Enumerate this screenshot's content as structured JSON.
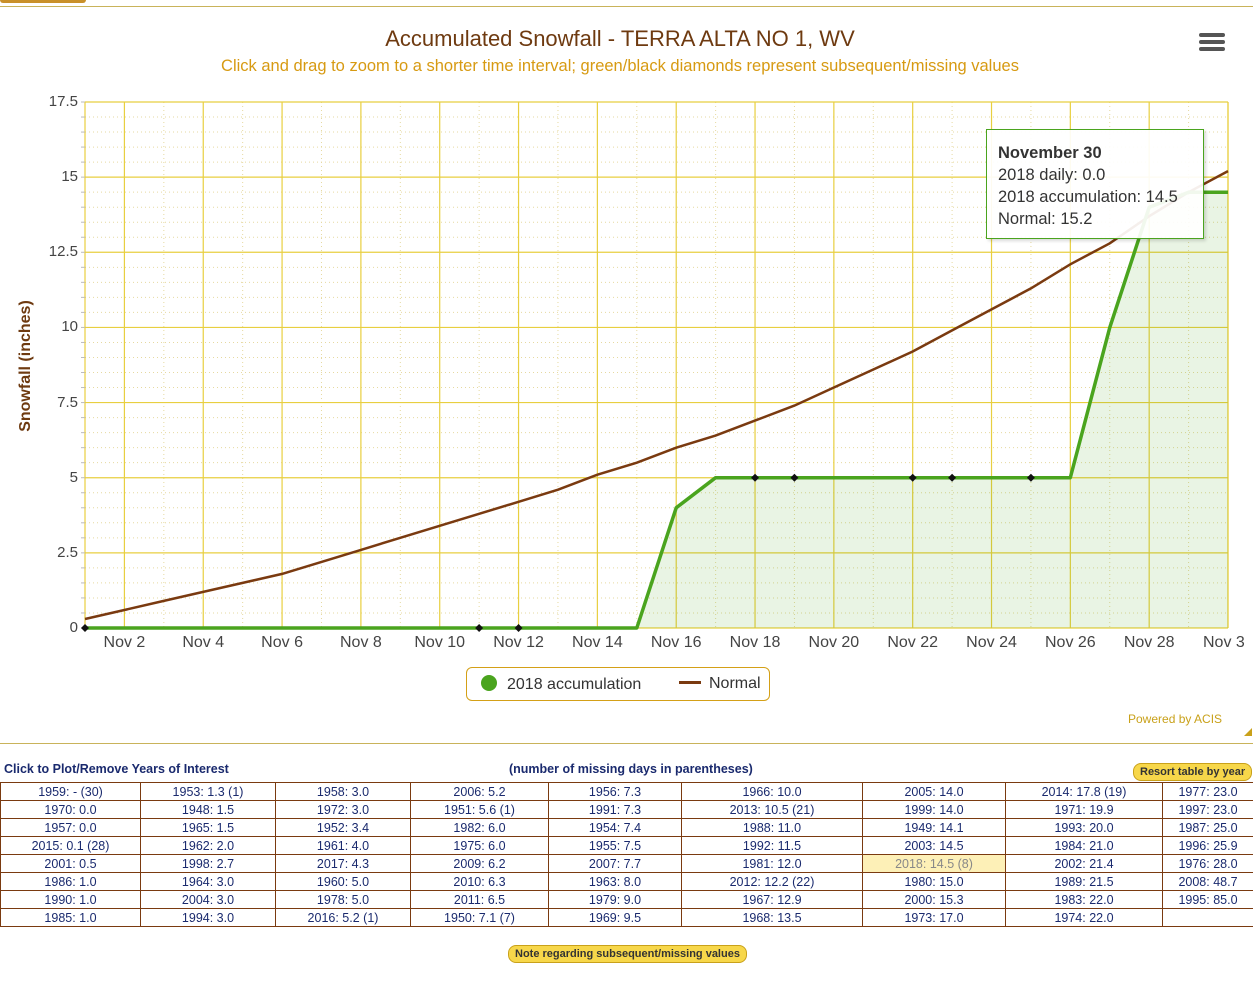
{
  "chart_data": {
    "type": "line",
    "title": "Accumulated Snowfall - TERRA ALTA NO 1, WV",
    "subtitle": "Click and drag to zoom to a shorter time interval; green/black diamonds represent subsequent/missing values",
    "ylabel": "Snowfall (inches)",
    "xlabel": "",
    "ylim": [
      0,
      17.5
    ],
    "yticks": [
      "0",
      "2.5",
      "5",
      "7.5",
      "10",
      "12.5",
      "15",
      "17.5"
    ],
    "xticks": [
      "Nov 2",
      "Nov 4",
      "Nov 6",
      "Nov 8",
      "Nov 10",
      "Nov 12",
      "Nov 14",
      "Nov 16",
      "Nov 18",
      "Nov 20",
      "Nov 22",
      "Nov 24",
      "Nov 26",
      "Nov 28",
      "Nov 3"
    ],
    "x_day_range": [
      1,
      30
    ],
    "grid": true,
    "legend_position": "bottom-center",
    "series": [
      {
        "name": "2018 accumulation",
        "color": "#4aa41e",
        "fill": "area",
        "days": [
          1,
          2,
          3,
          4,
          5,
          6,
          7,
          8,
          9,
          10,
          11,
          12,
          13,
          14,
          15,
          16,
          17,
          18,
          19,
          20,
          21,
          22,
          23,
          24,
          25,
          26,
          27,
          28,
          29,
          30
        ],
        "values": [
          0,
          0,
          0,
          0,
          0,
          0,
          0,
          0,
          0,
          0,
          0,
          0,
          0,
          0,
          0,
          4.0,
          5.0,
          5.0,
          5.0,
          5.0,
          5.0,
          5.0,
          5.0,
          5.0,
          5.0,
          5.0,
          10.0,
          14.0,
          14.5,
          14.5
        ],
        "missing_days": [
          1,
          11,
          12,
          18,
          19,
          22,
          23,
          25
        ]
      },
      {
        "name": "Normal",
        "color": "#7a3a10",
        "days": [
          1,
          2,
          3,
          4,
          5,
          6,
          7,
          8,
          9,
          10,
          11,
          12,
          13,
          14,
          15,
          16,
          17,
          18,
          19,
          20,
          21,
          22,
          23,
          24,
          25,
          26,
          27,
          28,
          29,
          30
        ],
        "values": [
          0.3,
          0.6,
          0.9,
          1.2,
          1.5,
          1.8,
          2.2,
          2.6,
          3.0,
          3.4,
          3.8,
          4.2,
          4.6,
          5.1,
          5.5,
          6.0,
          6.4,
          6.9,
          7.4,
          8.0,
          8.6,
          9.2,
          9.9,
          10.6,
          11.3,
          12.1,
          12.8,
          13.7,
          14.5,
          15.2
        ]
      }
    ],
    "tooltip": {
      "date": "November 30",
      "daily": "2018 daily: 0.0",
      "accumulation": "2018 accumulation: 14.5",
      "normal": "Normal: 15.2"
    },
    "credit": "Powered by ACIS"
  },
  "years_table": {
    "left_label": "Click to Plot/Remove Years of Interest",
    "middle_label": "(number of missing days in parentheses)",
    "resort_label": "Resort table by year",
    "note_label": "Note regarding subsequent/missing values",
    "current_year_text": "2018: 14.5 (8)",
    "rows": [
      [
        "1959: - (30)",
        "1953: 1.3 (1)",
        "1958: 3.0",
        "2006: 5.2",
        "1956: 7.3",
        "1966: 10.0",
        "2005: 14.0",
        "2014: 17.8 (19)",
        "1977: 23.0"
      ],
      [
        "1970: 0.0",
        "1948: 1.5",
        "1972: 3.0",
        "1951: 5.6 (1)",
        "1991: 7.3",
        "2013: 10.5 (21)",
        "1999: 14.0",
        "1971: 19.9",
        "1997: 23.0"
      ],
      [
        "1957: 0.0",
        "1965: 1.5",
        "1952: 3.4",
        "1982: 6.0",
        "1954: 7.4",
        "1988: 11.0",
        "1949: 14.1",
        "1993: 20.0",
        "1987: 25.0"
      ],
      [
        "2015: 0.1 (28)",
        "1962: 2.0",
        "1961: 4.0",
        "1975: 6.0",
        "1955: 7.5",
        "1992: 11.5",
        "2003: 14.5",
        "1984: 21.0",
        "1996: 25.9"
      ],
      [
        "2001: 0.5",
        "1998: 2.7",
        "2017: 4.3",
        "2009: 6.2",
        "2007: 7.7",
        "1981: 12.0",
        "2018: 14.5 (8)",
        "2002: 21.4",
        "1976: 28.0"
      ],
      [
        "1986: 1.0",
        "1964: 3.0",
        "1960: 5.0",
        "2010: 6.3",
        "1963: 8.0",
        "2012: 12.2 (22)",
        "1980: 15.0",
        "1989: 21.5",
        "2008: 48.7"
      ],
      [
        "1990: 1.0",
        "2004: 3.0",
        "1978: 5.0",
        "2011: 6.5",
        "1979: 9.0",
        "1967: 12.9",
        "2000: 15.3",
        "1983: 22.0",
        "1995: 85.0"
      ],
      [
        "1985: 1.0",
        "1994: 3.0",
        "2016: 5.2 (1)",
        "1950: 7.1 (7)",
        "1969: 9.5",
        "1968: 13.5",
        "1973: 17.0",
        "1974: 22.0",
        ""
      ]
    ]
  }
}
